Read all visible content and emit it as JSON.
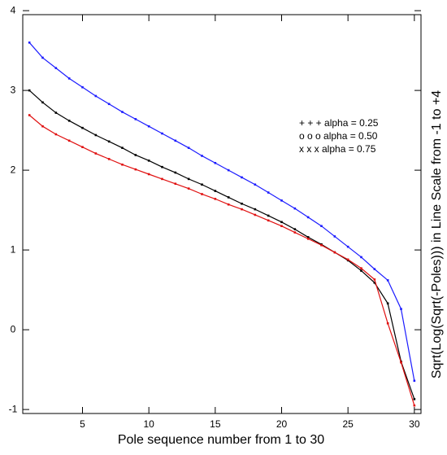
{
  "chart_data": {
    "type": "line",
    "xlabel": "Pole sequence number from 1 to 30",
    "ylabel": "Sqrt(Log(Sqrt(-Poles))) in Line Scale from  -1  to  +4",
    "x": [
      1,
      2,
      3,
      4,
      5,
      6,
      7,
      8,
      9,
      10,
      11,
      12,
      13,
      14,
      15,
      16,
      17,
      18,
      19,
      20,
      21,
      22,
      23,
      24,
      25,
      26,
      27,
      28,
      29,
      30
    ],
    "xlim": [
      0.5,
      30.5
    ],
    "xticks": [
      5,
      10,
      15,
      20,
      25,
      30
    ],
    "ylim": [
      -1.05,
      3.95
    ],
    "yticks": [
      -1,
      0,
      1,
      2,
      3,
      4
    ],
    "legend": "upper right",
    "series": [
      {
        "name": "+ + + alpha = 0.25",
        "color": "#1c1cff",
        "values": [
          3.6,
          3.41,
          3.28,
          3.15,
          3.04,
          2.93,
          2.83,
          2.73,
          2.64,
          2.55,
          2.46,
          2.37,
          2.28,
          2.18,
          2.09,
          2.0,
          1.91,
          1.82,
          1.72,
          1.62,
          1.52,
          1.41,
          1.3,
          1.17,
          1.04,
          0.91,
          0.76,
          0.62,
          0.26,
          -0.64
        ]
      },
      {
        "name": "o o o alpha = 0.50",
        "color": "#000000",
        "values": [
          3.0,
          2.85,
          2.72,
          2.62,
          2.53,
          2.44,
          2.36,
          2.28,
          2.19,
          2.12,
          2.04,
          1.97,
          1.89,
          1.82,
          1.74,
          1.66,
          1.58,
          1.51,
          1.43,
          1.35,
          1.26,
          1.16,
          1.07,
          0.97,
          0.87,
          0.74,
          0.59,
          0.33,
          -0.4,
          -0.87
        ]
      },
      {
        "name": "x x x  alpha = 0.75",
        "color": "#e01010",
        "values": [
          2.69,
          2.55,
          2.45,
          2.37,
          2.29,
          2.21,
          2.14,
          2.07,
          2.01,
          1.95,
          1.89,
          1.83,
          1.77,
          1.7,
          1.64,
          1.57,
          1.51,
          1.44,
          1.37,
          1.3,
          1.22,
          1.14,
          1.06,
          0.97,
          0.88,
          0.77,
          0.63,
          0.08,
          -0.41,
          -0.95
        ]
      }
    ]
  }
}
